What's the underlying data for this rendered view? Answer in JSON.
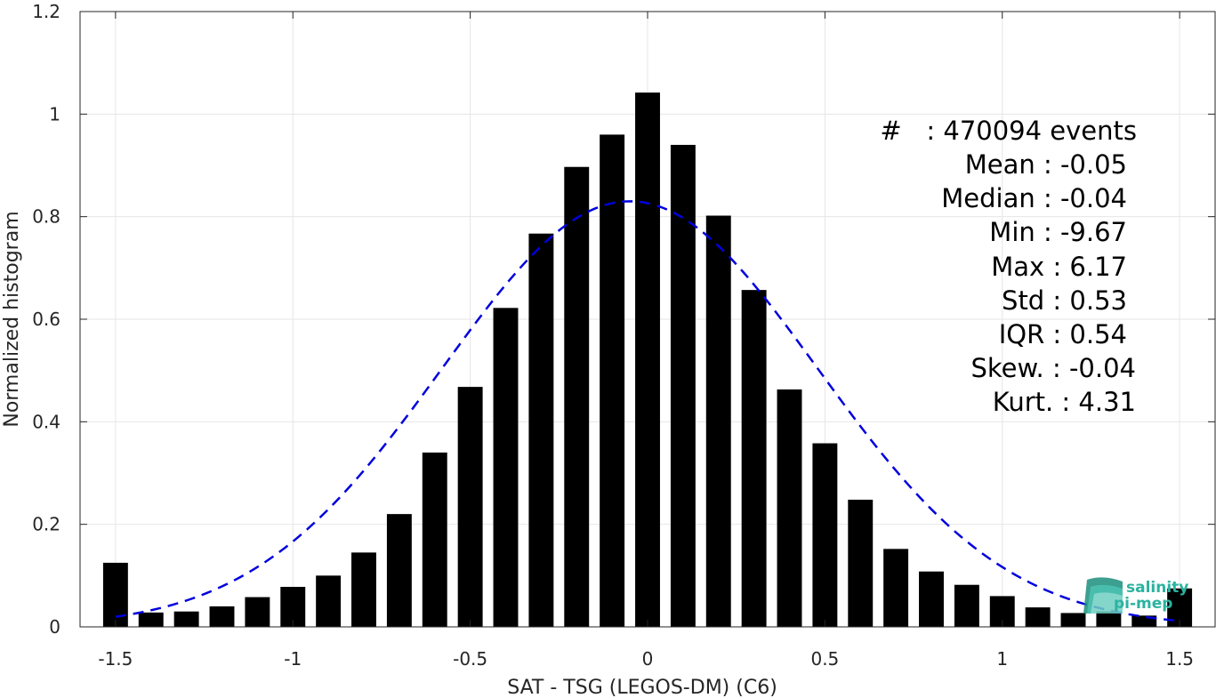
{
  "chart_data": {
    "type": "bar",
    "xlabel": "SAT - TSG (LEGOS-DM) (C6)",
    "ylabel": "Normalized histogram",
    "xlim": [
      -1.6,
      1.6
    ],
    "ylim": [
      0,
      1.2
    ],
    "xticks": [
      -1.5,
      -1,
      -0.5,
      0,
      0.5,
      1,
      1.5
    ],
    "xtick_labels": [
      "-1.5",
      "-1",
      "-0.5",
      "0",
      "0.5",
      "1",
      "1.5"
    ],
    "yticks": [
      0,
      0.2,
      0.4,
      0.6,
      0.8,
      1,
      1.2
    ],
    "ytick_labels": [
      "0",
      "0.2",
      "0.4",
      "0.6",
      "0.8",
      "1",
      "1.2"
    ],
    "grid": true,
    "bar_color": "#000000",
    "bin_width": 0.1,
    "x": [
      -1.5,
      -1.4,
      -1.3,
      -1.2,
      -1.1,
      -1.0,
      -0.9,
      -0.8,
      -0.7,
      -0.6,
      -0.5,
      -0.4,
      -0.3,
      -0.2,
      -0.1,
      0.0,
      0.1,
      0.2,
      0.3,
      0.4,
      0.5,
      0.6,
      0.7,
      0.8,
      0.9,
      1.0,
      1.1,
      1.2,
      1.3,
      1.4,
      1.5
    ],
    "values": [
      0.125,
      0.028,
      0.03,
      0.04,
      0.058,
      0.078,
      0.1,
      0.145,
      0.22,
      0.34,
      0.468,
      0.622,
      0.767,
      0.897,
      0.96,
      1.042,
      0.94,
      0.802,
      0.657,
      0.463,
      0.358,
      0.248,
      0.152,
      0.108,
      0.082,
      0.06,
      0.038,
      0.027,
      0.03,
      0.022,
      0.075
    ],
    "fit_curve": {
      "type": "normal",
      "mean": -0.05,
      "std": 0.53,
      "peak": 0.83,
      "x_range": [
        -1.5,
        1.5
      ],
      "color": "#0000dd",
      "style": "dashed"
    }
  },
  "stats": {
    "lines": [
      "#   : 470094 events",
      "Mean : -0.05",
      "Median : -0.04",
      "Min : -9.67",
      "Max : 6.17",
      "Std : 0.53",
      "IQR : 0.54",
      "Skew. : -0.04",
      "Kurt. : 4.31"
    ]
  },
  "logo": {
    "line1": "salinity",
    "line2": "pi-mep",
    "color": "#2bb3a0"
  }
}
